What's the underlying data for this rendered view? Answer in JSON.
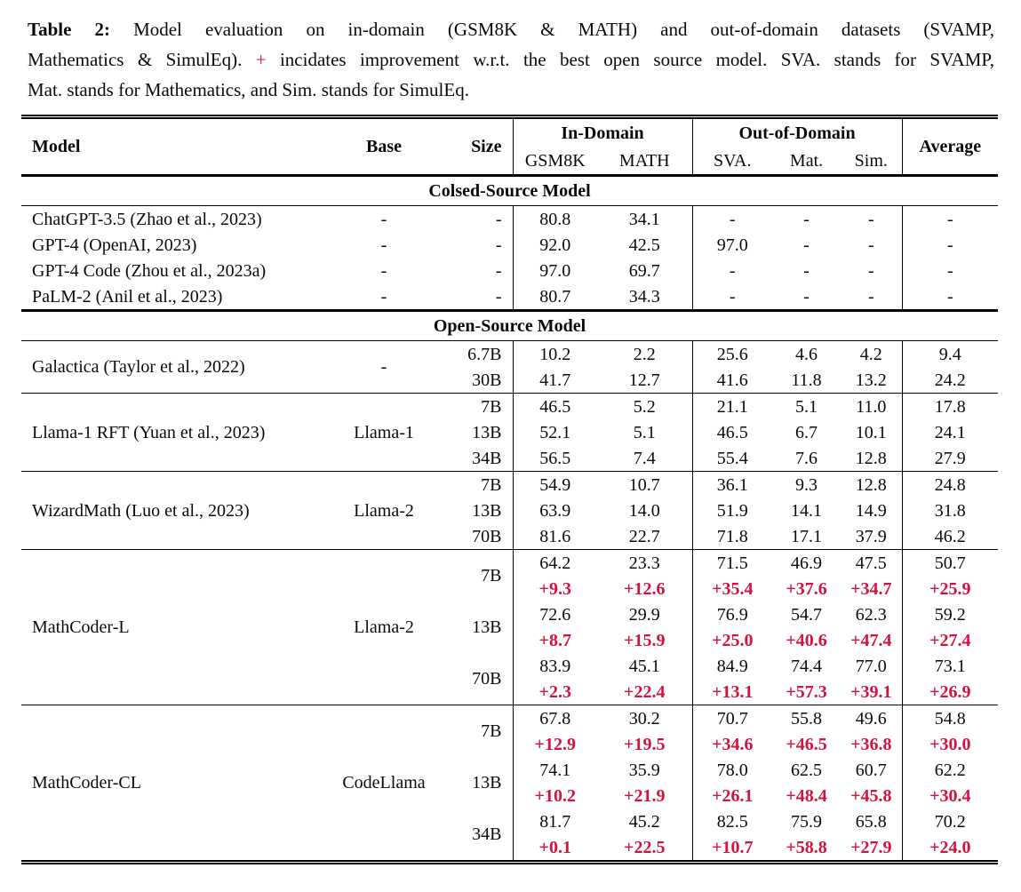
{
  "colors": {
    "accent_red": "#d3123e",
    "rule_black": "#000000"
  },
  "caption": {
    "label": "Table 2:",
    "line1_rest": "Model evaluation on in-domain (GSM8K & MATH) and out-of-domain datasets (SVAMP,",
    "line2_pre": "Mathematics & SimulEq).",
    "line2_plus": "+",
    "line2_rest": "incidates improvement w.r.t. the best open source model. SVA. stands for SVAMP,",
    "line3": "Mat. stands for Mathematics, and Sim. stands for SimulEq."
  },
  "table": {
    "headers": {
      "model": "Model",
      "base": "Base",
      "size": "Size",
      "in_domain": "In-Domain",
      "out_domain": "Out-of-Domain",
      "average": "Average",
      "gsm8k": "GSM8K",
      "math": "MATH",
      "sva": "SVA.",
      "mat": "Mat.",
      "sim": "Sim."
    },
    "sections": [
      {
        "title": "Colsed-Source Model",
        "groups": [
          {
            "model": "ChatGPT-3.5 (Zhao et al., 2023)",
            "base": "-",
            "rows": [
              {
                "size": "-",
                "values": [
                  "80.8",
                  "34.1",
                  "-",
                  "-",
                  "-",
                  "-"
                ]
              }
            ]
          },
          {
            "model": "GPT-4 (OpenAI, 2023)",
            "base": "-",
            "rows": [
              {
                "size": "-",
                "values": [
                  "92.0",
                  "42.5",
                  "97.0",
                  "-",
                  "-",
                  "-"
                ]
              }
            ]
          },
          {
            "model": "GPT-4 Code (Zhou et al., 2023a)",
            "base": "-",
            "rows": [
              {
                "size": "-",
                "values": [
                  "97.0",
                  "69.7",
                  "-",
                  "-",
                  "-",
                  "-"
                ]
              }
            ]
          },
          {
            "model": "PaLM-2 (Anil et al., 2023)",
            "base": "-",
            "rows": [
              {
                "size": "-",
                "values": [
                  "80.7",
                  "34.3",
                  "-",
                  "-",
                  "-",
                  "-"
                ]
              }
            ]
          }
        ]
      },
      {
        "title": "Open-Source Model",
        "groups": [
          {
            "model": "Galactica (Taylor et al., 2022)",
            "base": "-",
            "rows": [
              {
                "size": "6.7B",
                "values": [
                  "10.2",
                  "2.2",
                  "25.6",
                  "4.6",
                  "4.2",
                  "9.4"
                ]
              },
              {
                "size": "30B",
                "values": [
                  "41.7",
                  "12.7",
                  "41.6",
                  "11.8",
                  "13.2",
                  "24.2"
                ]
              }
            ]
          },
          {
            "model": "Llama-1 RFT (Yuan et al., 2023)",
            "base": "Llama-1",
            "rows": [
              {
                "size": "7B",
                "values": [
                  "46.5",
                  "5.2",
                  "21.1",
                  "5.1",
                  "11.0",
                  "17.8"
                ]
              },
              {
                "size": "13B",
                "values": [
                  "52.1",
                  "5.1",
                  "46.5",
                  "6.7",
                  "10.1",
                  "24.1"
                ]
              },
              {
                "size": "34B",
                "values": [
                  "56.5",
                  "7.4",
                  "55.4",
                  "7.6",
                  "12.8",
                  "27.9"
                ]
              }
            ]
          },
          {
            "model": "WizardMath (Luo et al., 2023)",
            "base": "Llama-2",
            "rows": [
              {
                "size": "7B",
                "values": [
                  "54.9",
                  "10.7",
                  "36.1",
                  "9.3",
                  "12.8",
                  "24.8"
                ]
              },
              {
                "size": "13B",
                "values": [
                  "63.9",
                  "14.0",
                  "51.9",
                  "14.1",
                  "14.9",
                  "31.8"
                ]
              },
              {
                "size": "70B",
                "values": [
                  "81.6",
                  "22.7",
                  "71.8",
                  "17.1",
                  "37.9",
                  "46.2"
                ]
              }
            ]
          },
          {
            "model": "MathCoder-L",
            "base": "Llama-2",
            "rows": [
              {
                "size": "7B",
                "values": [
                  "64.2",
                  "23.3",
                  "71.5",
                  "46.9",
                  "47.5",
                  "50.7"
                ],
                "delta": [
                  "+9.3",
                  "+12.6",
                  "+35.4",
                  "+37.6",
                  "+34.7",
                  "+25.9"
                ]
              },
              {
                "size": "13B",
                "values": [
                  "72.6",
                  "29.9",
                  "76.9",
                  "54.7",
                  "62.3",
                  "59.2"
                ],
                "delta": [
                  "+8.7",
                  "+15.9",
                  "+25.0",
                  "+40.6",
                  "+47.4",
                  "+27.4"
                ]
              },
              {
                "size": "70B",
                "values": [
                  "83.9",
                  "45.1",
                  "84.9",
                  "74.4",
                  "77.0",
                  "73.1"
                ],
                "delta": [
                  "+2.3",
                  "+22.4",
                  "+13.1",
                  "+57.3",
                  "+39.1",
                  "+26.9"
                ]
              }
            ]
          },
          {
            "model": "MathCoder-CL",
            "base": "CodeLlama",
            "rows": [
              {
                "size": "7B",
                "values": [
                  "67.8",
                  "30.2",
                  "70.7",
                  "55.8",
                  "49.6",
                  "54.8"
                ],
                "delta": [
                  "+12.9",
                  "+19.5",
                  "+34.6",
                  "+46.5",
                  "+36.8",
                  "+30.0"
                ]
              },
              {
                "size": "13B",
                "values": [
                  "74.1",
                  "35.9",
                  "78.0",
                  "62.5",
                  "60.7",
                  "62.2"
                ],
                "delta": [
                  "+10.2",
                  "+21.9",
                  "+26.1",
                  "+48.4",
                  "+45.8",
                  "+30.4"
                ]
              },
              {
                "size": "34B",
                "values": [
                  "81.7",
                  "45.2",
                  "82.5",
                  "75.9",
                  "65.8",
                  "70.2"
                ],
                "delta": [
                  "+0.1",
                  "+22.5",
                  "+10.7",
                  "+58.8",
                  "+27.9",
                  "+24.0"
                ]
              }
            ]
          }
        ]
      }
    ]
  }
}
